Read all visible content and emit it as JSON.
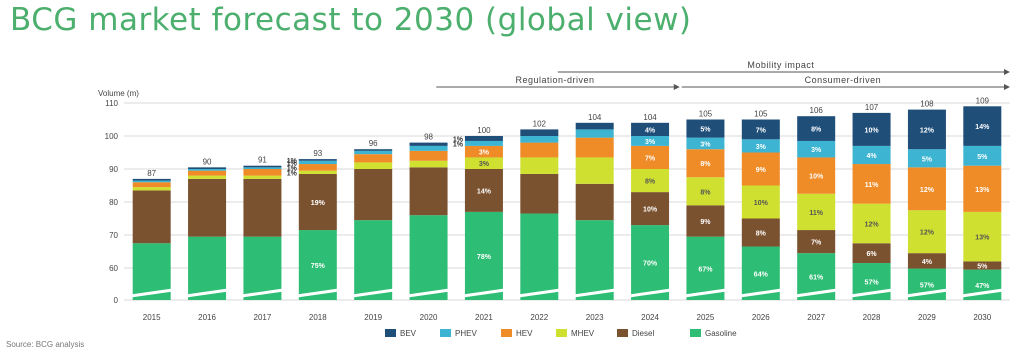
{
  "title": "BCG market forecast to 2030 (global view)",
  "source": "Source: BCG analysis",
  "colors": {
    "BEV": "#1f4e79",
    "PHEV": "#3cb4d2",
    "HEV": "#f08c28",
    "MHEV": "#cfe030",
    "Diesel": "#7b5230",
    "Gasoline": "#2ebd74",
    "grid": "#d9d9d9",
    "axis_text": "#444444",
    "title": "#4caf6e"
  },
  "phases": [
    {
      "label": "Regulation-driven",
      "from": "2021",
      "to": "2025"
    },
    {
      "label": "Consumer-driven",
      "from": "2025",
      "to": "2030"
    },
    {
      "label": "Mobility impact",
      "from": "2025",
      "to": "2030"
    }
  ],
  "chart_data": {
    "type": "bar",
    "stacked": true,
    "ylabel": "Volume (m)",
    "ylim": [
      0,
      110
    ],
    "yticks": [
      0,
      60,
      70,
      80,
      90,
      100,
      110
    ],
    "y_axis_break": true,
    "categories": [
      "2015",
      "2016",
      "2017",
      "2018",
      "2019",
      "2020",
      "2021",
      "2022",
      "2023",
      "2024",
      "2025",
      "2026",
      "2027",
      "2028",
      "2029",
      "2030"
    ],
    "totals": [
      "87",
      "90",
      "91",
      "93",
      "96",
      "98",
      "100",
      "102",
      "104",
      "104",
      "105",
      "105",
      "106",
      "107",
      "108",
      "109"
    ],
    "legend": [
      "BEV",
      "PHEV",
      "HEV",
      "MHEV",
      "Diesel",
      "Gasoline"
    ],
    "legend_position": "bottom",
    "grid": true,
    "series": [
      {
        "name": "Gasoline",
        "values": [
          67.5,
          69.5,
          69.5,
          71.5,
          74.5,
          76,
          77,
          76.5,
          74.5,
          73,
          69.5,
          66.5,
          64.5,
          61.5,
          59,
          57
        ]
      },
      {
        "name": "Diesel",
        "values": [
          16,
          17.5,
          17.5,
          17,
          15.5,
          14.5,
          13,
          12,
          11,
          10,
          9.5,
          8.5,
          7,
          6,
          5.5,
          5
        ]
      },
      {
        "name": "MHEV",
        "values": [
          1,
          1,
          1,
          1,
          2,
          2,
          3.5,
          5,
          8,
          7,
          8.5,
          10,
          11,
          12,
          13,
          15
        ]
      },
      {
        "name": "HEV",
        "values": [
          1.5,
          1.5,
          2,
          2,
          2.5,
          3,
          3.5,
          4.5,
          6,
          7,
          8.5,
          10,
          11,
          12,
          13,
          14
        ]
      },
      {
        "name": "PHEV",
        "values": [
          0.5,
          0.5,
          0.5,
          1,
          1,
          1.5,
          1.5,
          2,
          2.5,
          3,
          3.5,
          4,
          5,
          5.5,
          5.5,
          6
        ]
      },
      {
        "name": "BEV",
        "values": [
          0.5,
          0.5,
          0.5,
          0.5,
          0.5,
          1,
          1.5,
          2,
          2,
          4,
          5.5,
          6,
          7.5,
          10,
          12,
          12
        ]
      }
    ],
    "data_labels": {
      "2018": {
        "Gasoline": "75%",
        "Diesel": "19%",
        "MHEV": "1%",
        "HEV": "1%",
        "PHEV": "1%",
        "BEV": "1%"
      },
      "2021": {
        "Gasoline": "78%",
        "Diesel": "14%",
        "MHEV": "3%",
        "HEV": "3%",
        "PHEV": "1%",
        "BEV": "1%"
      },
      "2024": {
        "Gasoline": "70%",
        "Diesel": "10%",
        "MHEV": "8%",
        "HEV": "7%",
        "PHEV": "3%",
        "BEV": "4%"
      },
      "2025": {
        "Gasoline": "67%",
        "Diesel": "9%",
        "MHEV": "8%",
        "HEV": "8%",
        "PHEV": "3%",
        "BEV": "5%"
      },
      "2026": {
        "Gasoline": "64%",
        "Diesel": "8%",
        "MHEV": "10%",
        "HEV": "9%",
        "PHEV": "3%",
        "BEV": "7%"
      },
      "2027": {
        "Gasoline": "61%",
        "Diesel": "7%",
        "MHEV": "11%",
        "HEV": "10%",
        "PHEV": "3%",
        "BEV": "8%"
      },
      "2028": {
        "Gasoline": "57%",
        "Diesel": "6%",
        "MHEV": "12%",
        "HEV": "11%",
        "PHEV": "4%",
        "BEV": "10%"
      },
      "2029": {
        "Gasoline": "57%",
        "Diesel": "4%",
        "MHEV": "12%",
        "HEV": "12%",
        "PHEV": "5%",
        "BEV": "12%"
      },
      "2030": {
        "Gasoline": "47%",
        "Diesel": "5%",
        "MHEV": "13%",
        "HEV": "13%",
        "PHEV": "5%",
        "BEV": "14%"
      }
    }
  }
}
